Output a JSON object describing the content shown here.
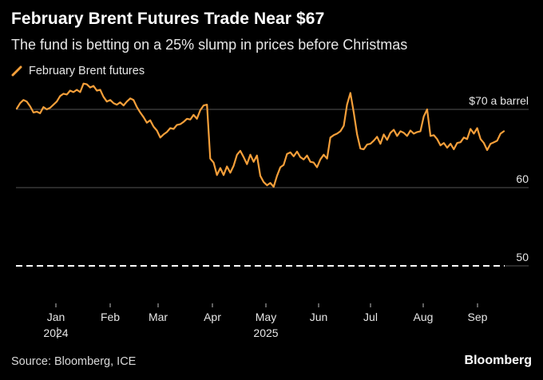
{
  "title": "February Brent Futures Trade Near $67",
  "subtitle": "The fund is betting on a 25% slump in prices before Christmas",
  "legend": {
    "label": "February Brent futures"
  },
  "source": "Source: Bloomberg, ICE",
  "brand": "Bloomberg",
  "colors": {
    "series": "#f59f3a",
    "grid": "#555555",
    "background": "#000000",
    "text": "#e6e6e6"
  },
  "chart_data": {
    "type": "line",
    "ylim": [
      48,
      75
    ],
    "grid": true,
    "y_ticks": [
      {
        "value": 70,
        "label": "$70 a barrel"
      },
      {
        "value": 60,
        "label": "60"
      },
      {
        "value": 50,
        "label": "50",
        "dashed": true
      }
    ],
    "x_ticks": [
      {
        "label": "Jan",
        "year": "2024"
      },
      {
        "label": "Feb"
      },
      {
        "label": "Mar"
      },
      {
        "label": "Apr"
      },
      {
        "label": "May",
        "year": "2025"
      },
      {
        "label": "Jun"
      },
      {
        "label": "Jul"
      },
      {
        "label": "Aug"
      },
      {
        "label": "Sep"
      }
    ],
    "series": [
      {
        "name": "February Brent futures",
        "values": [
          70.1,
          70.8,
          71.2,
          71.0,
          70.4,
          69.6,
          69.7,
          69.5,
          70.3,
          70.0,
          70.2,
          70.6,
          71.0,
          71.7,
          72.0,
          71.9,
          72.4,
          72.2,
          72.5,
          72.2,
          73.3,
          73.2,
          72.8,
          73.0,
          72.4,
          72.5,
          71.6,
          71.0,
          71.2,
          70.8,
          70.6,
          70.9,
          70.5,
          71.0,
          71.4,
          71.2,
          70.3,
          69.6,
          69.0,
          68.3,
          68.6,
          67.8,
          67.3,
          66.4,
          66.8,
          67.1,
          67.6,
          67.5,
          68.0,
          68.1,
          68.4,
          68.8,
          68.7,
          69.3,
          68.8,
          69.9,
          70.5,
          70.6,
          63.7,
          63.2,
          61.6,
          62.5,
          61.6,
          62.7,
          61.9,
          62.8,
          64.2,
          64.7,
          63.9,
          63.0,
          64.2,
          63.3,
          64.1,
          61.5,
          60.7,
          60.3,
          60.6,
          60.1,
          61.5,
          62.6,
          62.9,
          64.3,
          64.5,
          64.0,
          64.6,
          63.9,
          63.6,
          64.1,
          63.3,
          63.2,
          62.6,
          63.6,
          64.2,
          63.7,
          66.4,
          66.7,
          66.9,
          67.2,
          67.9,
          70.6,
          72.1,
          69.6,
          66.8,
          65.0,
          64.9,
          65.5,
          65.6,
          66.0,
          66.5,
          65.6,
          66.8,
          66.1,
          67.0,
          67.4,
          66.6,
          67.2,
          67.0,
          66.6,
          67.3,
          66.9,
          67.1,
          67.2,
          69.1,
          70.0,
          66.6,
          66.7,
          66.2,
          65.4,
          65.7,
          65.1,
          65.6,
          64.9,
          65.7,
          65.8,
          66.4,
          66.2,
          67.5,
          66.9,
          67.6,
          66.2,
          65.7,
          64.8,
          65.6,
          65.8,
          66.0,
          66.9,
          67.2
        ]
      }
    ]
  }
}
